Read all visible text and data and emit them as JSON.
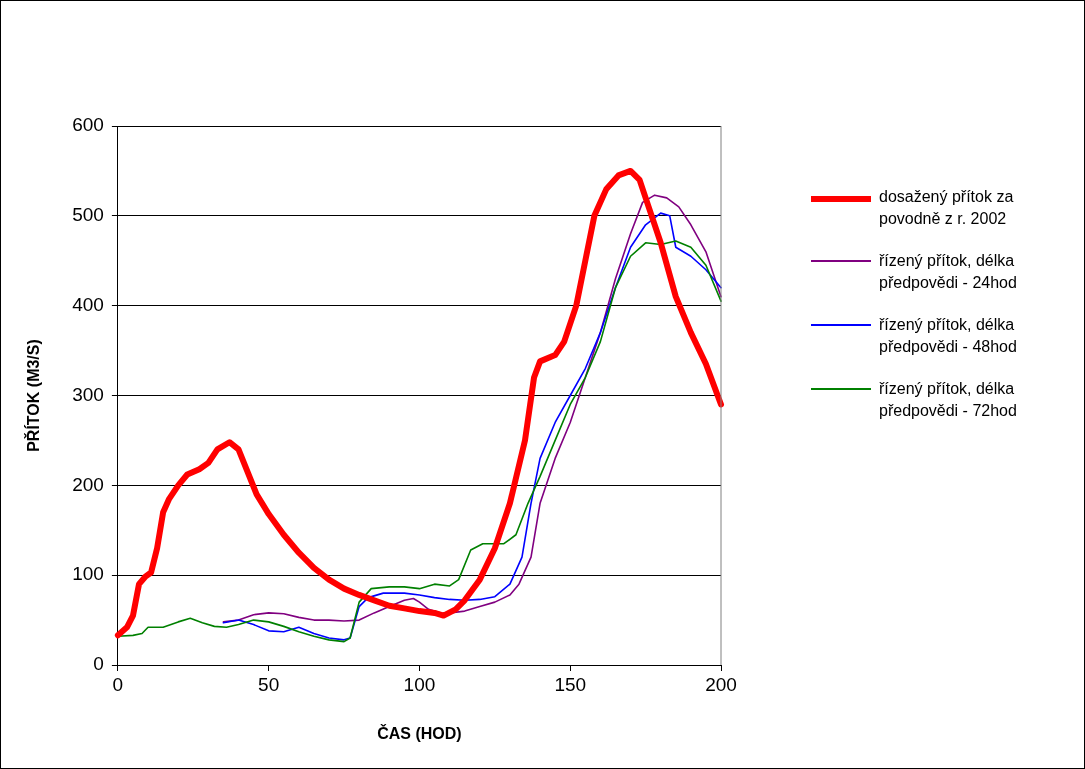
{
  "chart_data": {
    "type": "line",
    "xlabel": "ČAS (HOD)",
    "ylabel": "PŘÍTOK (M3/S)",
    "xlim": [
      0,
      200
    ],
    "xticks": [
      0,
      50,
      100,
      150,
      200
    ],
    "ylim": [
      0,
      600
    ],
    "yticks": [
      0,
      100,
      200,
      300,
      400,
      500,
      600
    ],
    "grid": "y",
    "legend": "right",
    "marker": "none",
    "line_style": "solid",
    "series": [
      {
        "name": "dosažený přítok za povodně z r. 2002",
        "color": "#ff0000",
        "x": [
          0,
          3,
          5,
          7,
          9,
          11,
          13,
          15,
          17,
          20,
          23,
          27,
          30,
          33,
          37,
          40,
          43,
          46,
          50,
          55,
          60,
          65,
          70,
          75,
          80,
          85,
          90,
          95,
          100,
          105,
          108,
          112,
          115,
          120,
          125,
          130,
          135,
          138,
          140,
          145,
          148,
          152,
          155,
          158,
          162,
          166,
          170,
          173,
          176,
          180,
          185,
          190,
          195,
          200
        ],
        "values": [
          33,
          42,
          55,
          90,
          98,
          103,
          130,
          170,
          185,
          200,
          212,
          218,
          225,
          240,
          248,
          240,
          215,
          190,
          168,
          145,
          125,
          108,
          95,
          85,
          78,
          72,
          66,
          63,
          60,
          58,
          55,
          62,
          72,
          95,
          130,
          180,
          250,
          320,
          338,
          345,
          360,
          400,
          450,
          500,
          530,
          545,
          550,
          540,
          510,
          470,
          410,
          370,
          335,
          290
        ]
      },
      {
        "name": "řízený přítok, délka předpovědi - 24hod",
        "color": "#800080",
        "x": [
          35,
          40,
          45,
          50,
          55,
          60,
          65,
          70,
          75,
          80,
          85,
          90,
          95,
          98,
          100,
          103,
          108,
          115,
          120,
          125,
          130,
          133,
          137,
          140,
          145,
          150,
          155,
          160,
          165,
          170,
          174,
          178,
          182,
          186,
          190,
          195,
          200
        ],
        "values": [
          48,
          50,
          56,
          58,
          57,
          53,
          50,
          50,
          49,
          50,
          58,
          65,
          72,
          74,
          70,
          62,
          57,
          60,
          65,
          70,
          78,
          90,
          120,
          180,
          230,
          270,
          320,
          370,
          430,
          480,
          515,
          523,
          520,
          510,
          490,
          460,
          410
        ]
      },
      {
        "name": "řízený přítok, délka předpovědi - 48hod",
        "color": "#0000ff",
        "x": [
          35,
          40,
          45,
          50,
          55,
          60,
          65,
          70,
          75,
          77,
          80,
          83,
          88,
          95,
          100,
          105,
          110,
          115,
          120,
          125,
          130,
          134,
          137,
          140,
          145,
          150,
          155,
          160,
          165,
          170,
          175,
          180,
          183,
          185,
          190,
          195,
          200
        ],
        "values": [
          47,
          50,
          45,
          38,
          37,
          42,
          35,
          30,
          28,
          30,
          65,
          75,
          80,
          80,
          78,
          75,
          73,
          72,
          73,
          76,
          90,
          120,
          180,
          230,
          270,
          300,
          330,
          370,
          420,
          465,
          490,
          503,
          500,
          465,
          455,
          440,
          420
        ]
      },
      {
        "name": "řízený přítok, délka předpovědi - 72hod",
        "color": "#008000",
        "x": [
          0,
          5,
          8,
          10,
          15,
          20,
          24,
          28,
          32,
          36,
          40,
          45,
          50,
          55,
          60,
          65,
          70,
          75,
          77,
          80,
          84,
          90,
          95,
          100,
          105,
          110,
          113,
          117,
          121,
          128,
          132,
          136,
          140,
          145,
          150,
          155,
          160,
          165,
          170,
          175,
          180,
          185,
          190,
          195,
          200
        ],
        "values": [
          32,
          33,
          35,
          42,
          42,
          48,
          52,
          47,
          43,
          42,
          45,
          50,
          48,
          43,
          37,
          32,
          28,
          26,
          30,
          70,
          85,
          87,
          87,
          85,
          90,
          88,
          95,
          128,
          135,
          135,
          145,
          180,
          210,
          250,
          290,
          320,
          360,
          420,
          455,
          470,
          468,
          472,
          465,
          445,
          405
        ]
      }
    ]
  }
}
